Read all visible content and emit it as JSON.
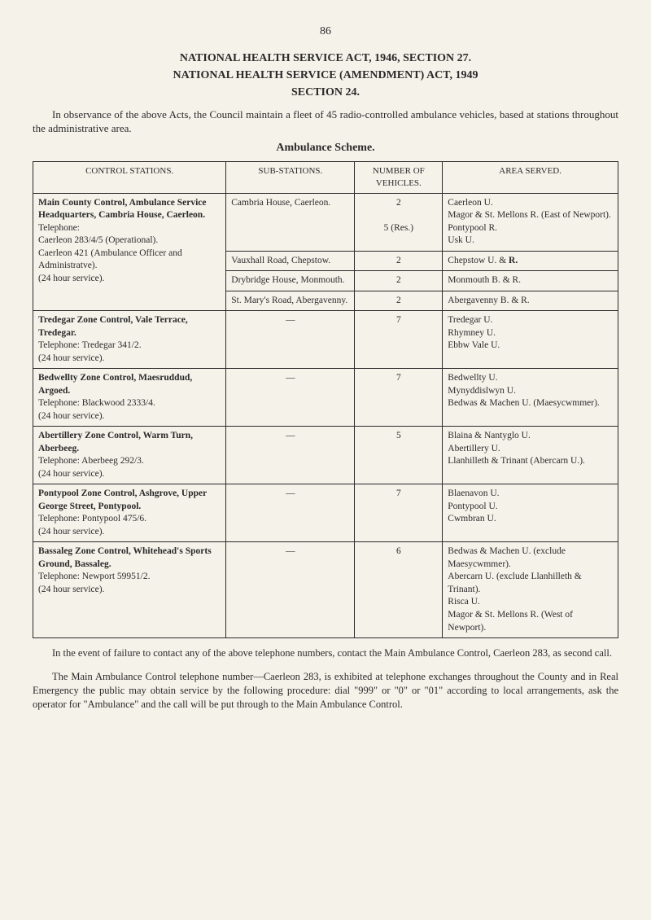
{
  "page_number": "86",
  "title": {
    "line1": "NATIONAL HEALTH SERVICE ACT, 1946, SECTION 27.",
    "line2": "NATIONAL HEALTH SERVICE (AMENDMENT) ACT, 1949",
    "line3": "SECTION 24."
  },
  "intro": "In observance of the above Acts, the Council maintain a fleet of 45 radio-controlled ambulance vehicles, based at stations throughout the administrative area.",
  "scheme_title": "Ambulance Scheme.",
  "headers": {
    "control": "CONTROL STATIONS.",
    "sub": "SUB-STATIONS.",
    "num": "NUMBER OF VEHICLES.",
    "area": "AREA SERVED."
  },
  "rows": [
    {
      "control_bold": "Main County Control, Ambulance Service Headquarters, Cambria House, Caerleon.",
      "control_rest": "Telephone:\nCaerleon 283/4/5 (Operational).\nCaerleon 421 (Ambulance Officer and Administratve).\n(24 hour service).",
      "subs": [
        {
          "sub": "Cambria House, Caerleon.",
          "num": "2\n\n5 (Res.)",
          "area": "Caerleon U.\nMagor & St. Mellons R. (East of Newport).\nPontypool R.\nUsk U."
        },
        {
          "sub": "Vauxhall Road, Chepstow.",
          "num": "2",
          "area_plain": "Chepstow U. & ",
          "area_bold": "R."
        },
        {
          "sub": "Drybridge House, Monmouth.",
          "num": "2",
          "area": "Monmouth B. & R."
        },
        {
          "sub": "St. Mary's Road, Abergavenny.",
          "num": "2",
          "area": "Abergavenny B. & R."
        }
      ]
    },
    {
      "control_bold": "Tredegar Zone Control, Vale Terrace, Tredegar.",
      "control_rest": "Telephone: Tredegar 341/2.\n(24 hour service).",
      "sub": "—",
      "num": "7",
      "area": "Tredegar U.\nRhymney U.\nEbbw Vale U."
    },
    {
      "control_bold": "Bedwellty Zone Control, Maesruddud, Argoed.",
      "control_rest": "Telephone: Blackwood 2333/4.\n(24 hour service).",
      "sub": "—",
      "num": "7",
      "area": "Bedwellty U.\nMynyddislwyn U.\nBedwas & Machen U. (Maesycwmmer)."
    },
    {
      "control_bold": "Abertillery Zone Control, Warm Turn, Aberbeeg.",
      "control_rest": "Telephone: Aberbeeg 292/3.\n(24 hour service).",
      "sub": "—",
      "num": "5",
      "area": "Blaina & Nantyglo U.\nAbertillery U.\nLlanhilleth & Trinant (Abercarn U.)."
    },
    {
      "control_bold": "Pontypool Zone Control, Ashgrove, Upper George Street, Pontypool.",
      "control_rest": "Telephone: Pontypool 475/6.\n(24 hour service).",
      "sub": "—",
      "num": "7",
      "area": "Blaenavon U.\nPontypool U.\nCwmbran U."
    },
    {
      "control_bold": "Bassaleg Zone Control, Whitehead's Sports Ground, Bassaleg.",
      "control_rest": "Telephone: Newport 59951/2.\n(24 hour service).",
      "sub": "—",
      "num": "6",
      "area": "Bedwas & Machen U. (exclude Maesycwmmer).\nAbercarn U. (exclude Llanhilleth & Trinant).\nRisca U.\nMagor & St. Mellons R. (West of Newport)."
    }
  ],
  "footer": {
    "p1": "In the event of failure to contact any of the above telephone numbers, contact the Main Ambulance Control, Caerleon 283, as second call.",
    "p2": "The Main Ambulance Control telephone number—Caerleon 283, is exhibited at telephone exchanges throughout the County and in Real Emergency the public may obtain service by the following procedure: dial \"999\" or \"0\" or \"01\" according to local arrangements, ask the operator for \"Ambulance\" and the call will be put through to the Main Ambulance Control."
  }
}
